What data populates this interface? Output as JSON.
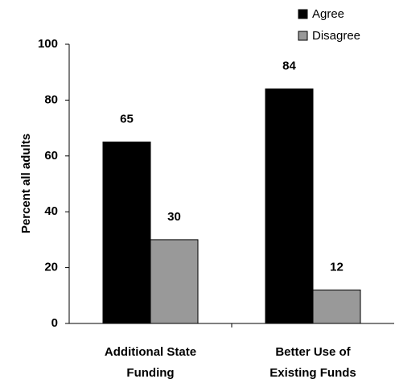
{
  "chart_data": {
    "type": "bar",
    "categories": [
      "Additional State Funding",
      "Better Use of Existing Funds"
    ],
    "category_lines": [
      [
        "Additional State",
        "Funding"
      ],
      [
        "Better Use of",
        "Existing Funds"
      ]
    ],
    "y_label": "Percent all adults",
    "series": [
      {
        "name": "Agree",
        "color": "#000000",
        "values": [
          65,
          84
        ]
      },
      {
        "name": "Disagree",
        "color": "#999999",
        "values": [
          30,
          12
        ]
      }
    ],
    "ylim": [
      0,
      100
    ],
    "yticks": [
      0,
      20,
      40,
      60,
      80,
      100
    ]
  }
}
